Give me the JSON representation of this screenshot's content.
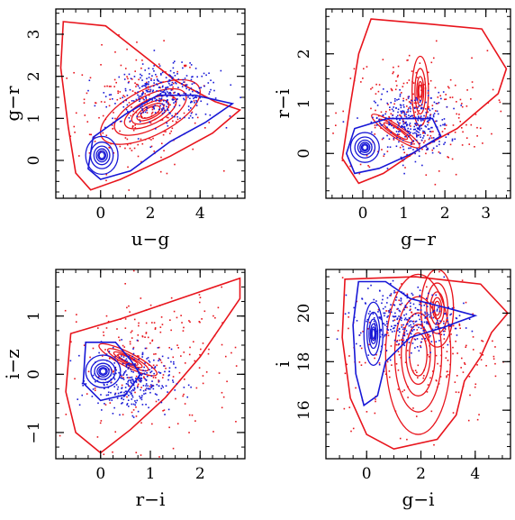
{
  "colors": {
    "red": "#e8141c",
    "blue": "#1717d6",
    "axis": "#000000"
  },
  "chart_data": [
    {
      "type": "scatter",
      "id": "ug-gr",
      "xlabel": "u−g",
      "ylabel": "g−r",
      "xlim": [
        -1.8,
        5.8
      ],
      "ylim": [
        -0.9,
        3.6
      ],
      "xticks": [
        {
          "v": 0,
          "label": "0"
        },
        {
          "v": 2,
          "label": "2"
        },
        {
          "v": 4,
          "label": "4"
        }
      ],
      "yticks": [
        {
          "v": 0,
          "label": "0"
        },
        {
          "v": 1,
          "label": "1"
        },
        {
          "v": 2,
          "label": "2"
        },
        {
          "v": 3,
          "label": "3"
        }
      ],
      "xminor": 0.5,
      "yminor": 0.25,
      "series": [
        {
          "color": "red",
          "outline": [
            [
              -1.5,
              3.3
            ],
            [
              0.2,
              3.2
            ],
            [
              1.5,
              2.6
            ],
            [
              3.0,
              1.9
            ],
            [
              4.6,
              1.4
            ],
            [
              5.6,
              1.2
            ],
            [
              4.5,
              0.65
            ],
            [
              2.8,
              0.1
            ],
            [
              0.8,
              -0.45
            ],
            [
              -0.4,
              -0.7
            ],
            [
              -1.0,
              -0.3
            ],
            [
              -1.3,
              0.8
            ],
            [
              -1.6,
              2.2
            ]
          ],
          "scatter": {
            "center": [
              1.5,
              1.2
            ],
            "spread": [
              2.8,
              1.6
            ],
            "n": 220
          },
          "contours": [
            {
              "c": [
                2.0,
                1.15
              ],
              "rx": 2.2,
              "ry": 0.55,
              "rot": 27,
              "n": 6,
              "k": 0.72
            }
          ]
        },
        {
          "color": "blue",
          "outline": [
            [
              -0.3,
              0.55
            ],
            [
              1.0,
              1.1
            ],
            [
              2.3,
              1.55
            ],
            [
              3.8,
              1.55
            ],
            [
              5.3,
              1.35
            ],
            [
              4.2,
              0.9
            ],
            [
              2.8,
              0.45
            ],
            [
              1.2,
              -0.25
            ],
            [
              0.0,
              -0.45
            ],
            [
              -0.5,
              -0.2
            ]
          ],
          "scatter": {
            "center": [
              2.6,
              1.6
            ],
            "spread": [
              2.4,
              0.7
            ],
            "n": 320
          },
          "contours": [
            {
              "c": [
                0.05,
                0.12
              ],
              "rx": 0.65,
              "ry": 0.45,
              "rot": 0,
              "n": 6,
              "k": 0.7
            }
          ]
        }
      ]
    },
    {
      "type": "scatter",
      "id": "gr-ri",
      "xlabel": "g−r",
      "ylabel": "r−i",
      "xlim": [
        -0.9,
        3.6
      ],
      "ylim": [
        -0.9,
        2.9
      ],
      "xticks": [
        {
          "v": 0,
          "label": "0"
        },
        {
          "v": 1,
          "label": "1"
        },
        {
          "v": 2,
          "label": "2"
        },
        {
          "v": 3,
          "label": "3"
        }
      ],
      "yticks": [
        {
          "v": 0,
          "label": "0"
        },
        {
          "v": 1,
          "label": "1"
        },
        {
          "v": 2,
          "label": "2"
        }
      ],
      "xminor": 0.25,
      "yminor": 0.25,
      "series": [
        {
          "color": "red",
          "outline": [
            [
              0.2,
              2.7
            ],
            [
              1.6,
              2.6
            ],
            [
              2.9,
              2.5
            ],
            [
              3.5,
              1.7
            ],
            [
              3.3,
              1.2
            ],
            [
              2.3,
              0.5
            ],
            [
              1.4,
              0.1
            ],
            [
              0.5,
              -0.4
            ],
            [
              -0.1,
              -0.6
            ],
            [
              -0.5,
              -0.1
            ],
            [
              -0.3,
              1.0
            ],
            [
              -0.1,
              2.0
            ]
          ],
          "scatter": {
            "center": [
              1.2,
              0.8
            ],
            "spread": [
              2.0,
              1.4
            ],
            "n": 240
          },
          "contours": [
            {
              "c": [
                1.4,
                1.25
              ],
              "rx": 0.2,
              "ry": 0.7,
              "rot": 0,
              "n": 5,
              "k": 0.65
            },
            {
              "c": [
                0.8,
                0.45
              ],
              "rx": 0.7,
              "ry": 0.12,
              "rot": -34,
              "n": 3,
              "k": 0.7
            }
          ]
        },
        {
          "color": "blue",
          "outline": [
            [
              -0.2,
              0.5
            ],
            [
              0.6,
              0.7
            ],
            [
              1.7,
              0.7
            ],
            [
              1.9,
              0.35
            ],
            [
              1.2,
              0.0
            ],
            [
              0.4,
              -0.3
            ],
            [
              -0.2,
              -0.4
            ],
            [
              -0.4,
              0.0
            ]
          ],
          "scatter": {
            "center": [
              1.2,
              0.6
            ],
            "spread": [
              1.0,
              0.7
            ],
            "n": 300
          },
          "contours": [
            {
              "c": [
                0.05,
                0.12
              ],
              "rx": 0.35,
              "ry": 0.3,
              "rot": 0,
              "n": 6,
              "k": 0.7
            }
          ]
        }
      ]
    },
    {
      "type": "scatter",
      "id": "ri-iz",
      "xlabel": "r−i",
      "ylabel": "i−z",
      "xlim": [
        -0.9,
        2.9
      ],
      "ylim": [
        -1.45,
        1.8
      ],
      "xticks": [
        {
          "v": 0,
          "label": "0"
        },
        {
          "v": 1,
          "label": "1"
        },
        {
          "v": 2,
          "label": "2"
        }
      ],
      "yticks": [
        {
          "v": -1,
          "label": "−1"
        },
        {
          "v": 0,
          "label": "0"
        },
        {
          "v": 1,
          "label": "1"
        }
      ],
      "xminor": 0.25,
      "yminor": 0.25,
      "series": [
        {
          "color": "red",
          "outline": [
            [
              -0.6,
              0.7
            ],
            [
              0.4,
              0.95
            ],
            [
              1.6,
              1.3
            ],
            [
              2.8,
              1.65
            ],
            [
              2.8,
              1.3
            ],
            [
              2.0,
              0.3
            ],
            [
              1.3,
              -0.4
            ],
            [
              0.6,
              -0.95
            ],
            [
              0.0,
              -1.35
            ],
            [
              -0.5,
              -1.0
            ],
            [
              -0.7,
              -0.3
            ]
          ],
          "scatter": {
            "center": [
              1.0,
              0.2
            ],
            "spread": [
              1.9,
              1.6
            ],
            "n": 240
          },
          "contours": [
            {
              "c": [
                0.55,
                0.25
              ],
              "rx": 0.65,
              "ry": 0.12,
              "rot": -27,
              "n": 4,
              "k": 0.7
            }
          ]
        },
        {
          "color": "blue",
          "outline": [
            [
              -0.3,
              0.55
            ],
            [
              0.3,
              0.55
            ],
            [
              0.6,
              0.25
            ],
            [
              0.8,
              0.0
            ],
            [
              0.5,
              -0.35
            ],
            [
              0.0,
              -0.45
            ],
            [
              -0.35,
              -0.15
            ]
          ],
          "scatter": {
            "center": [
              0.6,
              -0.1
            ],
            "spread": [
              0.9,
              0.6
            ],
            "n": 300
          },
          "contours": [
            {
              "c": [
                0.05,
                0.05
              ],
              "rx": 0.35,
              "ry": 0.28,
              "rot": 0,
              "n": 6,
              "k": 0.7
            }
          ]
        }
      ]
    },
    {
      "type": "scatter",
      "id": "gi-i",
      "xlabel": "g−i",
      "ylabel": "i",
      "xlim": [
        -1.5,
        5.3
      ],
      "ylim": [
        14.0,
        21.8
      ],
      "xticks": [
        {
          "v": 0,
          "label": "0"
        },
        {
          "v": 2,
          "label": "2"
        },
        {
          "v": 4,
          "label": "4"
        }
      ],
      "yticks": [
        {
          "v": 16,
          "label": "16"
        },
        {
          "v": 18,
          "label": "18"
        },
        {
          "v": 20,
          "label": "20"
        }
      ],
      "xminor": 0.5,
      "yminor": 0.5,
      "series": [
        {
          "color": "red",
          "outline": [
            [
              -0.8,
              21.4
            ],
            [
              1.8,
              21.5
            ],
            [
              4.2,
              21.2
            ],
            [
              5.2,
              20.0
            ],
            [
              4.6,
              19.2
            ],
            [
              4.2,
              18.2
            ],
            [
              3.6,
              17.2
            ],
            [
              3.3,
              15.8
            ],
            [
              2.6,
              14.8
            ],
            [
              1.0,
              14.4
            ],
            [
              0.0,
              15.0
            ],
            [
              -0.6,
              16.5
            ],
            [
              -0.9,
              19.0
            ]
          ],
          "scatter": {
            "center": [
              2.0,
              18.5
            ],
            "spread": [
              3.4,
              3.4
            ],
            "n": 220
          },
          "contours": [
            {
              "c": [
                1.9,
                18.3
              ],
              "rx": 1.2,
              "ry": 3.3,
              "rot": 0,
              "n": 5,
              "k": 0.72
            },
            {
              "c": [
                2.6,
                20.2
              ],
              "rx": 0.6,
              "ry": 1.6,
              "rot": 0,
              "n": 5,
              "k": 0.65
            }
          ]
        },
        {
          "color": "blue",
          "outline": [
            [
              -0.3,
              21.3
            ],
            [
              0.7,
              21.3
            ],
            [
              1.6,
              20.6
            ],
            [
              3.0,
              20.2
            ],
            [
              4.0,
              19.9
            ],
            [
              2.8,
              19.4
            ],
            [
              1.6,
              19.0
            ],
            [
              0.7,
              18.0
            ],
            [
              0.4,
              16.6
            ],
            [
              -0.1,
              16.2
            ],
            [
              -0.4,
              17.5
            ],
            [
              -0.5,
              19.5
            ]
          ],
          "scatter": {
            "center": [
              1.4,
              19.8
            ],
            "spread": [
              2.0,
              1.4
            ],
            "n": 300
          },
          "contours": [
            {
              "c": [
                0.25,
                19.15
              ],
              "rx": 0.35,
              "ry": 1.3,
              "rot": 0,
              "n": 6,
              "k": 0.68
            }
          ]
        }
      ]
    }
  ]
}
